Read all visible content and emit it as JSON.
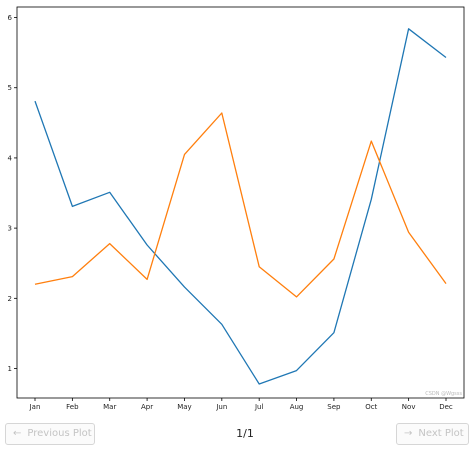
{
  "chart_data": {
    "type": "line",
    "categories": [
      "Jan",
      "Feb",
      "Mar",
      "Apr",
      "May",
      "Jun",
      "Jul",
      "Aug",
      "Sep",
      "Oct",
      "Nov",
      "Dec"
    ],
    "series": [
      {
        "color": "#1f77b4",
        "values": [
          4.81,
          3.31,
          3.51,
          2.76,
          2.16,
          1.63,
          0.78,
          0.97,
          1.51,
          3.41,
          5.84,
          5.43
        ]
      },
      {
        "color": "#ff7f0e",
        "values": [
          2.2,
          2.31,
          2.78,
          2.27,
          4.05,
          4.64,
          2.45,
          2.02,
          2.56,
          4.24,
          2.94,
          2.21
        ]
      }
    ],
    "yticks": [
      1,
      2,
      3,
      4,
      5,
      6
    ],
    "ylim": [
      0.58,
      6.15
    ],
    "title": "",
    "xlabel": "",
    "ylabel": "",
    "grid": false,
    "watermark": "CSDN @Wgsss"
  },
  "nav": {
    "prev_label": "Previous Plot",
    "next_label": "Next Plot",
    "page": "1/1",
    "prev_arrow": "←",
    "next_arrow": "→",
    "arrow_icon": "arrow-icon"
  }
}
